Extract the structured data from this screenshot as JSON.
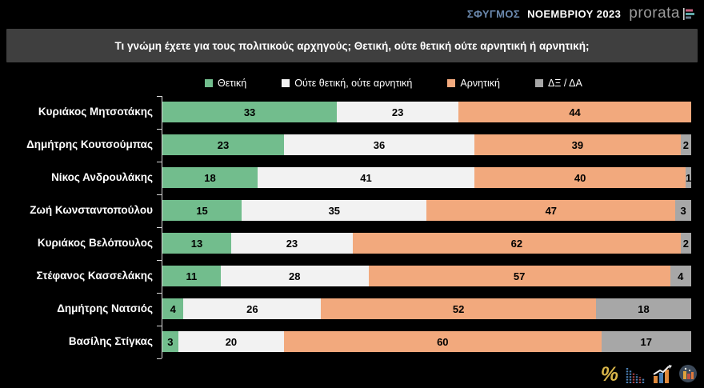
{
  "header": {
    "survey_label": "ΣΦΥΓΜΟΣ",
    "survey_period": "ΝΟΕΜΒΡΙΟΥ 2023",
    "brand": "prorata"
  },
  "question": "Τι γνώμη έχετε για τους πολιτικούς αρχηγούς; Θετική, ούτε θετική ούτε αρνητική ή αρνητική;",
  "colors": {
    "positive": "#72bd8d",
    "neutral": "#f2f2f2",
    "negative": "#f2a97d",
    "dk_na": "#a7a7a7",
    "background": "#000000",
    "title_bar": "#3f3f3f",
    "survey_label_blue": "#6b89ae",
    "percent_icon_gold": "#d9b64a"
  },
  "footer": {
    "percent_glyph": "%"
  },
  "chart_data": {
    "type": "bar",
    "orientation": "horizontal",
    "stacked": true,
    "unit": "percent",
    "xlim": [
      0,
      100
    ],
    "legend_position": "top",
    "grid": false,
    "categories": [
      "Κυριάκος Μητσοτάκης",
      "Δημήτρης Κουτσούμπας",
      "Νίκος Ανδρουλάκης",
      "Ζωή Κωνσταντοπούλου",
      "Κυριάκος Βελόπουλος",
      "Στέφανος Κασσελάκης",
      "Δημήτρης Νατσιός",
      "Βασίλης Στίγκας"
    ],
    "series": [
      {
        "name": "Θετική",
        "color_key": "positive",
        "values": [
          33,
          23,
          18,
          15,
          13,
          11,
          4,
          3
        ]
      },
      {
        "name": "Ούτε θετική, ούτε αρνητική",
        "color_key": "neutral",
        "values": [
          23,
          36,
          41,
          35,
          23,
          28,
          26,
          20
        ]
      },
      {
        "name": "Αρνητική",
        "color_key": "negative",
        "values": [
          44,
          39,
          40,
          47,
          62,
          57,
          52,
          60
        ]
      },
      {
        "name": "ΔΞ / ΔΑ",
        "color_key": "dk_na",
        "values": [
          0,
          2,
          1,
          3,
          2,
          4,
          18,
          17
        ]
      }
    ]
  }
}
